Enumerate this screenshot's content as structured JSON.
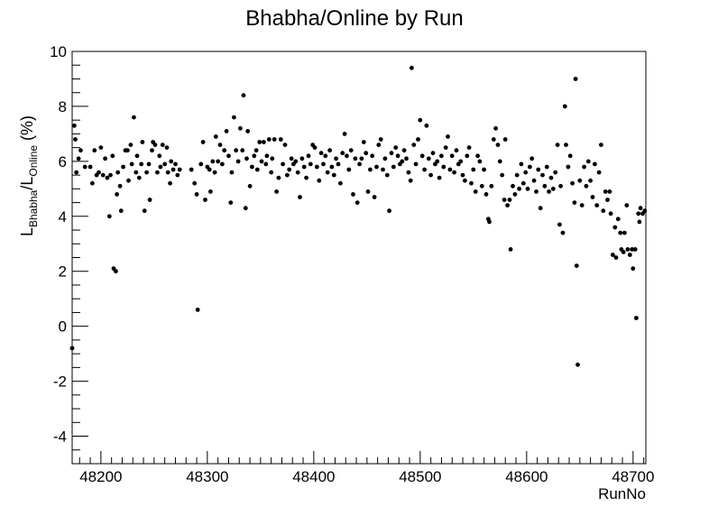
{
  "chart_data": {
    "type": "scatter",
    "title": "Bhabha/Online by Run",
    "xlabel": "RunNo",
    "ylabel_parts": {
      "l1": "L",
      "sub1": "Bhabha",
      "slash": "/L",
      "sub2": "Online",
      "unit": " (%)"
    },
    "xlim": [
      48173,
      48712
    ],
    "ylim": [
      -5,
      10
    ],
    "x_ticks": [
      48200,
      48300,
      48400,
      48500,
      48600,
      48700
    ],
    "y_ticks": [
      -4,
      -2,
      0,
      2,
      4,
      6,
      8,
      10
    ],
    "grid": false,
    "legend": "none",
    "marker_color": "#000000",
    "points": [
      [
        48173,
        -0.8
      ],
      [
        48175,
        7.3
      ],
      [
        48176,
        6.8
      ],
      [
        48177,
        5.6
      ],
      [
        48179,
        6.1
      ],
      [
        48181,
        6.4
      ],
      [
        48185,
        5.8
      ],
      [
        48190,
        5.8
      ],
      [
        48192,
        5.2
      ],
      [
        48194,
        6.4
      ],
      [
        48196,
        5.5
      ],
      [
        48198,
        5.6
      ],
      [
        48200,
        6.5
      ],
      [
        48202,
        5.5
      ],
      [
        48204,
        6.1
      ],
      [
        48206,
        5.4
      ],
      [
        48208,
        4.0
      ],
      [
        48209,
        5.5
      ],
      [
        48211,
        6.2
      ],
      [
        48212,
        2.1
      ],
      [
        48214,
        2.0
      ],
      [
        48215,
        4.8
      ],
      [
        48216,
        5.6
      ],
      [
        48218,
        5.1
      ],
      [
        48219,
        4.2
      ],
      [
        48221,
        5.8
      ],
      [
        48223,
        6.4
      ],
      [
        48225,
        6.4
      ],
      [
        48226,
        5.3
      ],
      [
        48228,
        6.6
      ],
      [
        48229,
        5.9
      ],
      [
        48231,
        7.6
      ],
      [
        48233,
        5.6
      ],
      [
        48234,
        6.2
      ],
      [
        48236,
        5.4
      ],
      [
        48238,
        5.9
      ],
      [
        48239,
        6.7
      ],
      [
        48241,
        4.2
      ],
      [
        48243,
        5.6
      ],
      [
        48245,
        5.9
      ],
      [
        48246,
        4.6
      ],
      [
        48248,
        6.4
      ],
      [
        48249,
        6.7
      ],
      [
        48251,
        6.6
      ],
      [
        48253,
        5.6
      ],
      [
        48255,
        6.2
      ],
      [
        48256,
        5.8
      ],
      [
        48258,
        6.6
      ],
      [
        48260,
        5.9
      ],
      [
        48262,
        6.5
      ],
      [
        48263,
        5.6
      ],
      [
        48265,
        5.2
      ],
      [
        48266,
        6.0
      ],
      [
        48268,
        5.7
      ],
      [
        48270,
        5.9
      ],
      [
        48272,
        5.5
      ],
      [
        48274,
        5.7
      ],
      [
        48285,
        5.7
      ],
      [
        48288,
        5.2
      ],
      [
        48290,
        4.8
      ],
      [
        48291,
        0.6
      ],
      [
        48294,
        5.9
      ],
      [
        48296,
        6.7
      ],
      [
        48298,
        4.6
      ],
      [
        48300,
        5.8
      ],
      [
        48302,
        5.7
      ],
      [
        48303,
        4.9
      ],
      [
        48305,
        6.0
      ],
      [
        48307,
        5.6
      ],
      [
        48308,
        6.9
      ],
      [
        48310,
        6.0
      ],
      [
        48312,
        6.6
      ],
      [
        48314,
        5.9
      ],
      [
        48316,
        6.4
      ],
      [
        48318,
        7.1
      ],
      [
        48320,
        6.2
      ],
      [
        48322,
        4.5
      ],
      [
        48323,
        5.6
      ],
      [
        48325,
        7.6
      ],
      [
        48327,
        6.4
      ],
      [
        48329,
        6.0
      ],
      [
        48331,
        7.2
      ],
      [
        48333,
        6.4
      ],
      [
        48334,
        8.4
      ],
      [
        48336,
        4.3
      ],
      [
        48337,
        6.1
      ],
      [
        48338,
        7.1
      ],
      [
        48340,
        5.1
      ],
      [
        48342,
        5.8
      ],
      [
        48344,
        6.2
      ],
      [
        48346,
        6.4
      ],
      [
        48347,
        5.7
      ],
      [
        48349,
        6.7
      ],
      [
        48351,
        6.0
      ],
      [
        48353,
        6.7
      ],
      [
        48355,
        5.9
      ],
      [
        48356,
        6.2
      ],
      [
        48358,
        6.8
      ],
      [
        48360,
        5.6
      ],
      [
        48361,
        6.1
      ],
      [
        48363,
        6.8
      ],
      [
        48365,
        4.9
      ],
      [
        48367,
        5.4
      ],
      [
        48369,
        6.8
      ],
      [
        48371,
        5.9
      ],
      [
        48373,
        6.6
      ],
      [
        48375,
        5.5
      ],
      [
        48377,
        5.7
      ],
      [
        48379,
        6.1
      ],
      [
        48381,
        5.9
      ],
      [
        48383,
        6.0
      ],
      [
        48385,
        5.6
      ],
      [
        48387,
        4.7
      ],
      [
        48389,
        6.1
      ],
      [
        48391,
        5.8
      ],
      [
        48393,
        5.4
      ],
      [
        48395,
        6.2
      ],
      [
        48397,
        5.9
      ],
      [
        48399,
        6.6
      ],
      [
        48401,
        6.5
      ],
      [
        48403,
        5.8
      ],
      [
        48405,
        5.3
      ],
      [
        48407,
        6.3
      ],
      [
        48409,
        5.9
      ],
      [
        48411,
        6.2
      ],
      [
        48413,
        5.6
      ],
      [
        48415,
        6.4
      ],
      [
        48417,
        5.8
      ],
      [
        48419,
        5.5
      ],
      [
        48421,
        6.1
      ],
      [
        48423,
        5.9
      ],
      [
        48425,
        5.2
      ],
      [
        48427,
        6.3
      ],
      [
        48429,
        7.0
      ],
      [
        48431,
        6.2
      ],
      [
        48433,
        5.7
      ],
      [
        48435,
        6.4
      ],
      [
        48437,
        4.8
      ],
      [
        48439,
        6.1
      ],
      [
        48441,
        4.5
      ],
      [
        48443,
        5.9
      ],
      [
        48445,
        6.1
      ],
      [
        48447,
        6.7
      ],
      [
        48449,
        6.3
      ],
      [
        48451,
        4.9
      ],
      [
        48453,
        5.7
      ],
      [
        48455,
        6.2
      ],
      [
        48457,
        4.7
      ],
      [
        48459,
        5.8
      ],
      [
        48461,
        6.6
      ],
      [
        48463,
        6.8
      ],
      [
        48465,
        5.7
      ],
      [
        48467,
        6.1
      ],
      [
        48469,
        5.5
      ],
      [
        48471,
        4.2
      ],
      [
        48473,
        6.3
      ],
      [
        48475,
        5.8
      ],
      [
        48477,
        6.5
      ],
      [
        48479,
        6.2
      ],
      [
        48481,
        5.9
      ],
      [
        48483,
        6.0
      ],
      [
        48485,
        6.4
      ],
      [
        48487,
        6.1
      ],
      [
        48489,
        5.6
      ],
      [
        48491,
        5.3
      ],
      [
        48492,
        9.4
      ],
      [
        48494,
        6.6
      ],
      [
        48496,
        5.9
      ],
      [
        48498,
        6.8
      ],
      [
        48500,
        7.5
      ],
      [
        48502,
        6.2
      ],
      [
        48504,
        5.7
      ],
      [
        48506,
        7.3
      ],
      [
        48508,
        6.1
      ],
      [
        48510,
        5.5
      ],
      [
        48512,
        6.3
      ],
      [
        48514,
        5.9
      ],
      [
        48516,
        6.0
      ],
      [
        48518,
        5.4
      ],
      [
        48520,
        6.2
      ],
      [
        48522,
        5.8
      ],
      [
        48524,
        6.5
      ],
      [
        48526,
        6.9
      ],
      [
        48528,
        5.7
      ],
      [
        48530,
        6.2
      ],
      [
        48532,
        5.6
      ],
      [
        48534,
        6.4
      ],
      [
        48536,
        5.9
      ],
      [
        48538,
        6.0
      ],
      [
        48540,
        5.5
      ],
      [
        48542,
        5.3
      ],
      [
        48544,
        6.2
      ],
      [
        48546,
        6.5
      ],
      [
        48548,
        5.2
      ],
      [
        48550,
        5.7
      ],
      [
        48552,
        4.9
      ],
      [
        48554,
        6.2
      ],
      [
        48556,
        6.0
      ],
      [
        48558,
        5.1
      ],
      [
        48560,
        5.7
      ],
      [
        48562,
        4.8
      ],
      [
        48564,
        3.9
      ],
      [
        48565,
        3.8
      ],
      [
        48567,
        5.1
      ],
      [
        48569,
        6.8
      ],
      [
        48571,
        7.2
      ],
      [
        48573,
        6.6
      ],
      [
        48575,
        6.0
      ],
      [
        48577,
        5.5
      ],
      [
        48579,
        4.6
      ],
      [
        48580,
        6.8
      ],
      [
        48582,
        4.4
      ],
      [
        48584,
        4.6
      ],
      [
        48585,
        2.8
      ],
      [
        48587,
        5.1
      ],
      [
        48589,
        4.8
      ],
      [
        48591,
        5.5
      ],
      [
        48593,
        5.0
      ],
      [
        48595,
        5.9
      ],
      [
        48597,
        5.2
      ],
      [
        48599,
        5.6
      ],
      [
        48601,
        5.0
      ],
      [
        48603,
        5.8
      ],
      [
        48605,
        6.1
      ],
      [
        48607,
        5.3
      ],
      [
        48609,
        4.9
      ],
      [
        48611,
        5.7
      ],
      [
        48613,
        4.3
      ],
      [
        48615,
        5.5
      ],
      [
        48617,
        5.1
      ],
      [
        48619,
        5.8
      ],
      [
        48621,
        4.9
      ],
      [
        48623,
        5.4
      ],
      [
        48625,
        5.0
      ],
      [
        48627,
        5.6
      ],
      [
        48629,
        6.6
      ],
      [
        48631,
        3.7
      ],
      [
        48632,
        5.1
      ],
      [
        48634,
        3.4
      ],
      [
        48636,
        8.0
      ],
      [
        48637,
        6.6
      ],
      [
        48639,
        5.8
      ],
      [
        48641,
        6.2
      ],
      [
        48643,
        5.2
      ],
      [
        48645,
        4.5
      ],
      [
        48646,
        9.0
      ],
      [
        48647,
        2.2
      ],
      [
        48648,
        -1.4
      ],
      [
        48650,
        5.3
      ],
      [
        48652,
        4.4
      ],
      [
        48654,
        5.8
      ],
      [
        48656,
        5.1
      ],
      [
        48658,
        6.0
      ],
      [
        48660,
        5.3
      ],
      [
        48662,
        4.7
      ],
      [
        48664,
        5.9
      ],
      [
        48666,
        4.4
      ],
      [
        48668,
        5.6
      ],
      [
        48670,
        6.6
      ],
      [
        48672,
        4.2
      ],
      [
        48674,
        4.9
      ],
      [
        48676,
        4.6
      ],
      [
        48678,
        4.9
      ],
      [
        48679,
        4.1
      ],
      [
        48681,
        2.6
      ],
      [
        48683,
        3.6
      ],
      [
        48684,
        2.5
      ],
      [
        48686,
        3.9
      ],
      [
        48688,
        3.4
      ],
      [
        48689,
        2.8
      ],
      [
        48691,
        2.7
      ],
      [
        48692,
        3.4
      ],
      [
        48694,
        4.4
      ],
      [
        48695,
        2.8
      ],
      [
        48697,
        2.6
      ],
      [
        48699,
        2.8
      ],
      [
        48700,
        2.1
      ],
      [
        48702,
        2.8
      ],
      [
        48703,
        0.3
      ],
      [
        48705,
        4.1
      ],
      [
        48706,
        3.8
      ],
      [
        48707,
        4.3
      ],
      [
        48709,
        4.1
      ],
      [
        48711,
        4.2
      ]
    ]
  }
}
